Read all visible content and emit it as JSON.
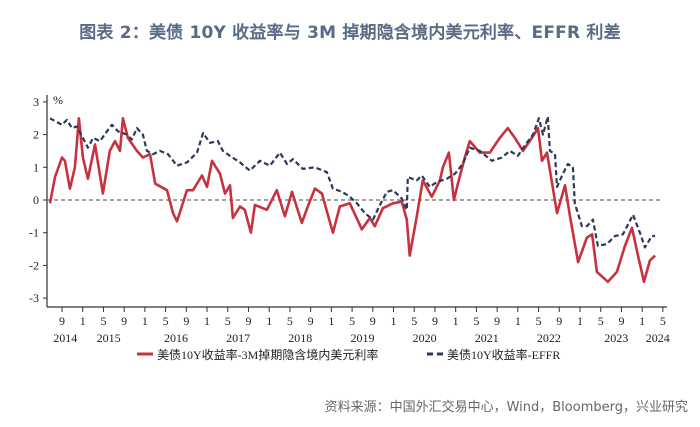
{
  "title": "图表 2：美债 10Y 收益率与 3M 掉期隐含境内美元利率、EFFR 利差",
  "source": "资料来源：中国外汇交易中心，Wind，Bloomberg，兴业研究",
  "chart_data": {
    "type": "line",
    "title": "图表 2：美债 10Y 收益率与 3M 掉期隐含境内美元利率、EFFR 利差",
    "ylabel": "%",
    "ylim": [
      -3,
      3
    ],
    "yticks": [
      "3",
      "2",
      "1",
      "0",
      "-1",
      "-2",
      "-3"
    ],
    "xlim": [
      "2014-06-15",
      "2024-05-15"
    ],
    "zero_line": "dashed",
    "grid": false,
    "legend_position": "bottom",
    "x_ticks": [
      {
        "date": "2014-09-01",
        "label": "9"
      },
      {
        "date": "2015-01-01",
        "label": "1"
      },
      {
        "date": "2015-05-01",
        "label": "5"
      },
      {
        "date": "2015-09-01",
        "label": "9"
      },
      {
        "date": "2016-01-01",
        "label": "1"
      },
      {
        "date": "2016-05-01",
        "label": "5"
      },
      {
        "date": "2016-09-01",
        "label": "9"
      },
      {
        "date": "2017-01-01",
        "label": "1"
      },
      {
        "date": "2017-05-01",
        "label": "5"
      },
      {
        "date": "2017-09-01",
        "label": "9"
      },
      {
        "date": "2018-01-01",
        "label": "1"
      },
      {
        "date": "2018-05-01",
        "label": "5"
      },
      {
        "date": "2018-09-01",
        "label": "9"
      },
      {
        "date": "2019-01-01",
        "label": "1"
      },
      {
        "date": "2019-05-01",
        "label": "5"
      },
      {
        "date": "2019-09-01",
        "label": "9"
      },
      {
        "date": "2020-01-01",
        "label": "1"
      },
      {
        "date": "2020-05-01",
        "label": "5"
      },
      {
        "date": "2020-09-01",
        "label": "9"
      },
      {
        "date": "2021-01-01",
        "label": "1"
      },
      {
        "date": "2021-05-01",
        "label": "5"
      },
      {
        "date": "2021-09-01",
        "label": "9"
      },
      {
        "date": "2022-01-01",
        "label": "1"
      },
      {
        "date": "2022-05-01",
        "label": "5"
      },
      {
        "date": "2022-09-01",
        "label": "9"
      },
      {
        "date": "2023-01-01",
        "label": "1"
      },
      {
        "date": "2023-05-01",
        "label": "5"
      },
      {
        "date": "2023-09-01",
        "label": "9"
      },
      {
        "date": "2024-01-01",
        "label": "1"
      },
      {
        "date": "2024-05-01",
        "label": "5"
      }
    ],
    "year_labels": [
      {
        "date": "2014-09-20",
        "label": "2014"
      },
      {
        "date": "2015-06-01",
        "label": "2015"
      },
      {
        "date": "2016-07-01",
        "label": "2016"
      },
      {
        "date": "2017-07-01",
        "label": "2017"
      },
      {
        "date": "2018-07-01",
        "label": "2018"
      },
      {
        "date": "2019-07-01",
        "label": "2019"
      },
      {
        "date": "2020-07-01",
        "label": "2020"
      },
      {
        "date": "2021-07-01",
        "label": "2021"
      },
      {
        "date": "2022-07-01",
        "label": "2022"
      },
      {
        "date": "2023-08-01",
        "label": "2023"
      },
      {
        "date": "2024-04-01",
        "label": "2024"
      }
    ],
    "series": [
      {
        "name": "美债10Y收益率-3M掉期隐含境内美元利率",
        "color": "#c8323f",
        "style": "solid",
        "points": [
          [
            "2014-06-22",
            -0.1
          ],
          [
            "2014-07-21",
            0.7
          ],
          [
            "2014-09-01",
            1.3
          ],
          [
            "2014-09-18",
            1.2
          ],
          [
            "2014-10-17",
            0.35
          ],
          [
            "2014-11-16",
            1.0
          ],
          [
            "2014-12-09",
            2.5
          ],
          [
            "2015-01-02",
            1.3
          ],
          [
            "2015-02-01",
            0.65
          ],
          [
            "2015-03-12",
            1.7
          ],
          [
            "2015-04-28",
            0.2
          ],
          [
            "2015-06-08",
            1.5
          ],
          [
            "2015-07-08",
            1.8
          ],
          [
            "2015-08-07",
            1.5
          ],
          [
            "2015-08-24",
            2.5
          ],
          [
            "2015-09-23",
            1.9
          ],
          [
            "2015-11-15",
            1.5
          ],
          [
            "2015-12-20",
            1.3
          ],
          [
            "2016-01-31",
            1.4
          ],
          [
            "2016-03-01",
            0.5
          ],
          [
            "2016-05-09",
            0.3
          ],
          [
            "2016-06-14",
            -0.4
          ],
          [
            "2016-07-07",
            -0.65
          ],
          [
            "2016-09-05",
            0.3
          ],
          [
            "2016-10-10",
            0.3
          ],
          [
            "2016-12-02",
            0.75
          ],
          [
            "2017-01-01",
            0.4
          ],
          [
            "2017-01-30",
            1.2
          ],
          [
            "2017-03-16",
            0.8
          ],
          [
            "2017-04-15",
            0.2
          ],
          [
            "2017-05-14",
            0.45
          ],
          [
            "2017-06-01",
            -0.55
          ],
          [
            "2017-07-12",
            -0.2
          ],
          [
            "2017-08-10",
            -0.3
          ],
          [
            "2017-09-15",
            -1.0
          ],
          [
            "2017-10-08",
            -0.15
          ],
          [
            "2017-12-18",
            -0.3
          ],
          [
            "2018-02-15",
            0.3
          ],
          [
            "2018-04-02",
            -0.5
          ],
          [
            "2018-05-13",
            0.25
          ],
          [
            "2018-07-10",
            -0.7
          ],
          [
            "2018-08-15",
            -0.2
          ],
          [
            "2018-09-26",
            0.35
          ],
          [
            "2018-11-06",
            0.2
          ],
          [
            "2019-01-10",
            -1.0
          ],
          [
            "2019-02-20",
            -0.2
          ],
          [
            "2019-04-18",
            -0.1
          ],
          [
            "2019-06-28",
            -0.9
          ],
          [
            "2019-08-14",
            -0.55
          ],
          [
            "2019-09-13",
            -0.8
          ],
          [
            "2019-10-30",
            -0.25
          ],
          [
            "2019-12-28",
            -0.1
          ],
          [
            "2020-02-19",
            -0.05
          ],
          [
            "2020-03-18",
            -0.6
          ],
          [
            "2020-04-05",
            -1.7
          ],
          [
            "2020-05-16",
            -0.5
          ],
          [
            "2020-06-21",
            0.6
          ],
          [
            "2020-08-13",
            0.1
          ],
          [
            "2020-09-30",
            0.6
          ],
          [
            "2020-10-17",
            1.0
          ],
          [
            "2020-11-22",
            1.45
          ],
          [
            "2020-12-21",
            0.0
          ],
          [
            "2021-01-14",
            0.5
          ],
          [
            "2021-02-24",
            1.3
          ],
          [
            "2021-03-23",
            1.8
          ],
          [
            "2021-05-21",
            1.45
          ],
          [
            "2021-07-19",
            1.45
          ],
          [
            "2021-09-17",
            1.9
          ],
          [
            "2021-11-03",
            2.2
          ],
          [
            "2021-12-14",
            1.9
          ],
          [
            "2022-01-31",
            1.5
          ],
          [
            "2022-03-23",
            1.9
          ],
          [
            "2022-04-28",
            2.2
          ],
          [
            "2022-05-21",
            1.2
          ],
          [
            "2022-06-20",
            1.45
          ],
          [
            "2022-08-18",
            -0.4
          ],
          [
            "2022-10-04",
            0.45
          ],
          [
            "2022-11-03",
            -0.5
          ],
          [
            "2022-12-20",
            -1.9
          ],
          [
            "2023-02-11",
            -1.15
          ],
          [
            "2023-03-11",
            -1.05
          ],
          [
            "2023-04-09",
            -2.2
          ],
          [
            "2023-06-13",
            -2.5
          ],
          [
            "2023-08-05",
            -2.2
          ],
          [
            "2023-09-22",
            -1.4
          ],
          [
            "2023-11-02",
            -0.85
          ],
          [
            "2023-12-07",
            -1.7
          ],
          [
            "2024-01-12",
            -2.5
          ],
          [
            "2024-02-16",
            -1.85
          ],
          [
            "2024-03-16",
            -1.7
          ]
        ]
      },
      {
        "name": "美债10Y收益率-EFFR",
        "color": "#2b3a5c",
        "style": "dashed",
        "points": [
          [
            "2014-06-22",
            2.5
          ],
          [
            "2014-09-01",
            2.3
          ],
          [
            "2014-09-30",
            2.45
          ],
          [
            "2014-10-29",
            2.2
          ],
          [
            "2014-11-28",
            2.25
          ],
          [
            "2015-01-02",
            1.9
          ],
          [
            "2015-02-01",
            1.6
          ],
          [
            "2015-03-01",
            1.9
          ],
          [
            "2015-04-11",
            1.8
          ],
          [
            "2015-05-22",
            2.1
          ],
          [
            "2015-06-20",
            2.3
          ],
          [
            "2015-07-25",
            2.1
          ],
          [
            "2015-09-17",
            2.0
          ],
          [
            "2015-10-16",
            1.85
          ],
          [
            "2015-11-15",
            2.2
          ],
          [
            "2015-12-20",
            2.0
          ],
          [
            "2016-01-13",
            1.5
          ],
          [
            "2016-02-18",
            1.4
          ],
          [
            "2016-03-29",
            1.5
          ],
          [
            "2016-05-15",
            1.4
          ],
          [
            "2016-07-07",
            1.05
          ],
          [
            "2016-09-05",
            1.15
          ],
          [
            "2016-11-03",
            1.45
          ],
          [
            "2016-12-08",
            2.05
          ],
          [
            "2017-01-18",
            1.75
          ],
          [
            "2017-03-04",
            1.8
          ],
          [
            "2017-04-03",
            1.5
          ],
          [
            "2017-05-14",
            1.35
          ],
          [
            "2017-07-12",
            1.15
          ],
          [
            "2017-09-09",
            0.9
          ],
          [
            "2017-11-07",
            1.2
          ],
          [
            "2018-01-05",
            1.05
          ],
          [
            "2018-03-03",
            1.45
          ],
          [
            "2018-04-14",
            1.1
          ],
          [
            "2018-05-19",
            1.25
          ],
          [
            "2018-07-16",
            0.95
          ],
          [
            "2018-09-26",
            1.0
          ],
          [
            "2018-12-05",
            0.85
          ],
          [
            "2019-01-10",
            0.35
          ],
          [
            "2019-03-02",
            0.25
          ],
          [
            "2019-04-18",
            0.1
          ],
          [
            "2019-05-29",
            -0.1
          ],
          [
            "2019-07-15",
            -0.4
          ],
          [
            "2019-09-02",
            -0.6
          ],
          [
            "2019-10-12",
            -0.15
          ],
          [
            "2019-11-23",
            0.25
          ],
          [
            "2019-12-28",
            0.3
          ],
          [
            "2020-02-19",
            0.05
          ],
          [
            "2020-03-18",
            -0.3
          ],
          [
            "2020-03-24",
            0.7
          ],
          [
            "2020-05-16",
            0.6
          ],
          [
            "2020-06-15",
            0.75
          ],
          [
            "2020-08-01",
            0.4
          ],
          [
            "2020-09-12",
            0.55
          ],
          [
            "2020-11-10",
            0.65
          ],
          [
            "2020-12-27",
            0.8
          ],
          [
            "2021-02-12",
            1.1
          ],
          [
            "2021-03-23",
            1.6
          ],
          [
            "2021-05-21",
            1.5
          ],
          [
            "2021-07-31",
            1.2
          ],
          [
            "2021-09-29",
            1.3
          ],
          [
            "2021-11-15",
            1.5
          ],
          [
            "2022-01-01",
            1.35
          ],
          [
            "2022-02-23",
            1.75
          ],
          [
            "2022-03-29",
            2.0
          ],
          [
            "2022-05-03",
            2.5
          ],
          [
            "2022-05-27",
            2.0
          ],
          [
            "2022-06-25",
            2.55
          ],
          [
            "2022-07-07",
            1.5
          ],
          [
            "2022-08-06",
            1.4
          ],
          [
            "2022-08-18",
            0.4
          ],
          [
            "2022-09-22",
            0.8
          ],
          [
            "2022-10-21",
            1.1
          ],
          [
            "2022-11-20",
            1.0
          ],
          [
            "2022-12-01",
            -0.1
          ],
          [
            "2023-01-12",
            -0.8
          ],
          [
            "2023-02-11",
            -0.8
          ],
          [
            "2023-03-16",
            -0.6
          ],
          [
            "2023-04-15",
            -1.4
          ],
          [
            "2023-06-07",
            -1.35
          ],
          [
            "2023-07-24",
            -1.1
          ],
          [
            "2023-09-10",
            -1.05
          ],
          [
            "2023-10-09",
            -0.75
          ],
          [
            "2023-11-08",
            -0.45
          ],
          [
            "2023-12-18",
            -1.0
          ],
          [
            "2024-01-17",
            -1.45
          ],
          [
            "2024-02-28",
            -1.1
          ],
          [
            "2024-03-16",
            -1.1
          ]
        ]
      }
    ]
  }
}
